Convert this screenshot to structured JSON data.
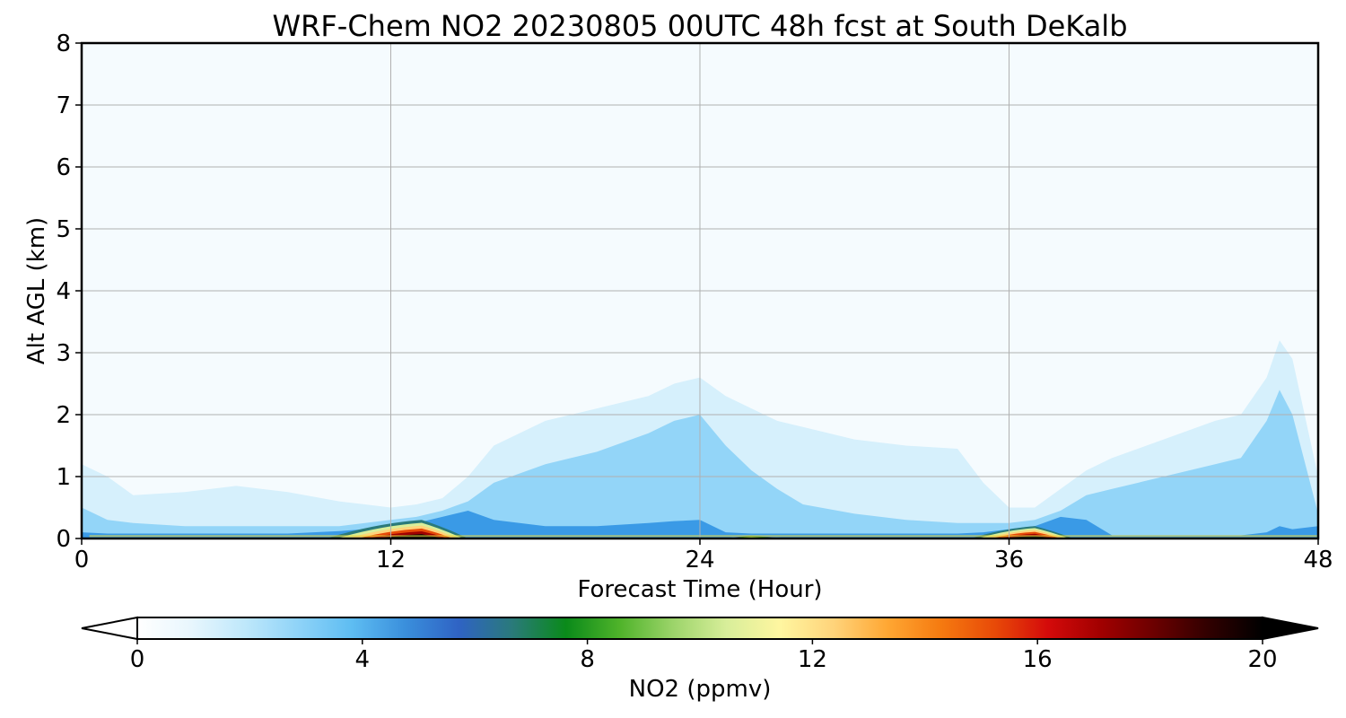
{
  "chart_data": {
    "type": "heatmap",
    "title": "WRF-Chem NO2  20230805 00UTC 48h fcst at South DeKalb",
    "xlabel": "Forecast Time (Hour)",
    "ylabel": "Alt AGL (km)",
    "xlim": [
      0,
      48
    ],
    "ylim": [
      0,
      8
    ],
    "xticks": [
      0,
      12,
      24,
      36,
      48
    ],
    "yticks": [
      0,
      1,
      2,
      3,
      4,
      5,
      6,
      7,
      8
    ],
    "grid": true,
    "colorbar": {
      "label": "NO2  (ppmv)",
      "range": [
        0,
        20
      ],
      "ticks": [
        0,
        4,
        8,
        12,
        16,
        20
      ],
      "extend": "both",
      "colors": [
        "#ffffff",
        "#e8f6fd",
        "#bfe8fb",
        "#8fd3f8",
        "#5ebdf2",
        "#3a8fdc",
        "#2f63c4",
        "#2a7a7a",
        "#0a8a1a",
        "#4fb32a",
        "#9cd46a",
        "#d8ee9a",
        "#fff6a0",
        "#ffd37a",
        "#ffa733",
        "#f57a10",
        "#e84a08",
        "#d40a0a",
        "#a00000",
        "#6a0000",
        "#300000",
        "#000000"
      ]
    },
    "profiles": {
      "x": [
        0,
        1,
        2,
        4,
        6,
        8,
        10,
        11,
        12,
        13,
        14,
        15,
        16,
        18,
        20,
        22,
        23,
        24,
        25,
        26,
        27,
        28,
        30,
        32,
        34,
        35,
        36,
        37,
        38,
        39,
        40,
        42,
        44,
        45,
        46,
        46.5,
        47,
        48
      ],
      "light_top_km": [
        1.2,
        1.0,
        0.7,
        0.75,
        0.85,
        0.75,
        0.6,
        0.55,
        0.5,
        0.55,
        0.65,
        1.0,
        1.5,
        1.9,
        2.1,
        2.3,
        2.5,
        2.6,
        2.3,
        2.1,
        1.9,
        1.8,
        1.6,
        1.5,
        1.45,
        0.9,
        0.5,
        0.5,
        0.8,
        1.1,
        1.3,
        1.6,
        1.9,
        2.0,
        2.6,
        3.2,
        2.9,
        1.0
      ],
      "medium_top_km": [
        0.5,
        0.3,
        0.25,
        0.2,
        0.2,
        0.2,
        0.2,
        0.25,
        0.3,
        0.35,
        0.45,
        0.6,
        0.9,
        1.2,
        1.4,
        1.7,
        1.9,
        2.0,
        1.5,
        1.1,
        0.8,
        0.55,
        0.4,
        0.3,
        0.25,
        0.25,
        0.25,
        0.3,
        0.45,
        0.7,
        0.8,
        1.0,
        1.2,
        1.3,
        1.9,
        2.4,
        2.0,
        0.4
      ],
      "dense_top_km": [
        0.1,
        0.08,
        0.08,
        0.08,
        0.08,
        0.08,
        0.12,
        0.15,
        0.2,
        0.25,
        0.35,
        0.45,
        0.3,
        0.2,
        0.2,
        0.25,
        0.28,
        0.3,
        0.1,
        0.08,
        0.08,
        0.08,
        0.08,
        0.08,
        0.08,
        0.1,
        0.15,
        0.2,
        0.35,
        0.3,
        0.05,
        0.05,
        0.05,
        0.05,
        0.1,
        0.2,
        0.15,
        0.2
      ]
    },
    "hotspots": [
      {
        "x_start": 9.5,
        "x_end": 15,
        "peak_x": 13.2,
        "peak_km": 0.3,
        "max_ppmv": 20
      },
      {
        "x_start": 25,
        "x_end": 27.5,
        "peak_x": 26,
        "peak_km": 0.06,
        "max_ppmv": 12
      },
      {
        "x_start": 34.5,
        "x_end": 38.5,
        "peak_x": 37,
        "peak_km": 0.2,
        "max_ppmv": 20
      }
    ]
  }
}
